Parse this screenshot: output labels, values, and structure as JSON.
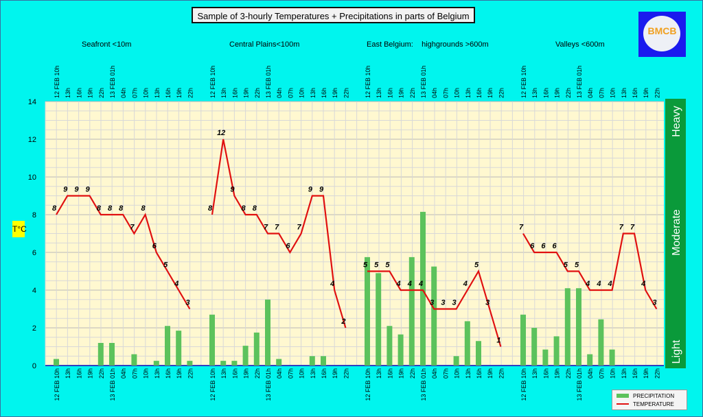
{
  "title": "Sample of 3-hourly Temperatures + Precipitations in parts of Belgium",
  "logo_text": "BMCB",
  "y_axis_label": "T°C",
  "regions": [
    "Seafront <10m",
    "Central Plains<100m",
    "East Belgium:    highgrounds >600m",
    "Valleys <600m"
  ],
  "intensity_labels": [
    "Light",
    "Moderate",
    "Heavy"
  ],
  "legend": [
    "PRECIPITATION",
    "TEMPERATURE"
  ],
  "colors": {
    "background": "#00f5ee",
    "plot": "#fff8d0",
    "bar": "#5cc25c",
    "line": "#e01010",
    "side_bar": "#0a9a3a"
  },
  "chart_data": {
    "type": "bar+line",
    "ylim": [
      0,
      14
    ],
    "yticks": [
      0,
      2,
      4,
      6,
      8,
      10,
      12,
      14
    ],
    "grid": true,
    "x_tick_labels": [
      "12 FEB 10h",
      "13h",
      "16h",
      "19h",
      "22h",
      "13 FEB 01h",
      "04h",
      "07h",
      "10h",
      "13h",
      "16h",
      "19h",
      "22h"
    ],
    "panels": [
      {
        "region": "Seafront <10m",
        "temperature": [
          8,
          9,
          9,
          9,
          8,
          8,
          8,
          7,
          8,
          6,
          5,
          4,
          3
        ],
        "precipitation": [
          0.35,
          0,
          0,
          0,
          1.2,
          1.2,
          0,
          0.6,
          0,
          0.25,
          2.1,
          1.85,
          0.25
        ]
      },
      {
        "region": "Central Plains<100m",
        "temperature": [
          8,
          12,
          9,
          8,
          8,
          7,
          7,
          6,
          7,
          9,
          9,
          4,
          2
        ],
        "precipitation": [
          2.7,
          0.25,
          0.25,
          1.05,
          1.75,
          3.5,
          0.35,
          0,
          0,
          0.5,
          0.5,
          0,
          0
        ]
      },
      {
        "region": "East Belgium: highgrounds >600m",
        "temperature": [
          5,
          5,
          5,
          4,
          4,
          4,
          3,
          3,
          3,
          4,
          5,
          3,
          1
        ],
        "precipitation": [
          5.75,
          4.9,
          2.1,
          1.65,
          5.75,
          8.15,
          5.25,
          0,
          0.5,
          2.35,
          1.3,
          0,
          0
        ]
      },
      {
        "region": "Valleys <600m",
        "temperature": [
          7,
          6,
          6,
          6,
          5,
          5,
          4,
          4,
          4,
          7,
          7,
          4,
          3
        ],
        "precipitation": [
          2.7,
          2.0,
          0.85,
          1.55,
          4.1,
          4.1,
          0.6,
          2.45,
          0.85,
          0,
          0,
          0,
          0
        ]
      }
    ],
    "series": [
      {
        "name": "PRECIPITATION",
        "kind": "bar"
      },
      {
        "name": "TEMPERATURE",
        "kind": "line"
      }
    ],
    "legend_position": "bottom-right"
  }
}
